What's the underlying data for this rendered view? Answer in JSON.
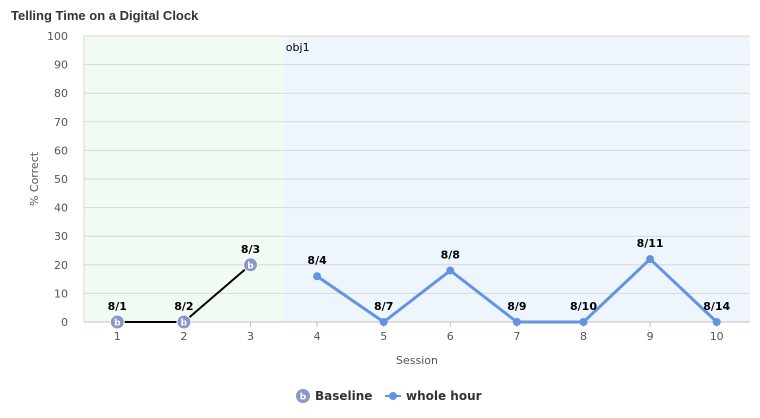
{
  "chart_data": {
    "type": "line",
    "title": "Telling Time on a Digital Clock",
    "xlabel": "Session",
    "ylabel": "% Correct",
    "ylim": [
      0,
      100
    ],
    "yticks": [
      0,
      10,
      20,
      30,
      40,
      50,
      60,
      70,
      80,
      90,
      100
    ],
    "xlim": [
      0.5,
      10.5
    ],
    "xticks": [
      1,
      2,
      3,
      4,
      5,
      6,
      7,
      8,
      9,
      10
    ],
    "grid": true,
    "legend_position": "bottom",
    "phases": [
      {
        "label": "",
        "start": 0.5,
        "end": 3.5,
        "color": "#f2fbf2"
      },
      {
        "label": "obj1",
        "start": 3.5,
        "end": 10.5,
        "color": "#eef5fd"
      }
    ],
    "series": [
      {
        "name": "Baseline",
        "color": "#000000",
        "marker": "b",
        "marker_color": "#8898c8",
        "points": [
          {
            "x": 1,
            "y": 0,
            "label": "8/1"
          },
          {
            "x": 2,
            "y": 0,
            "label": "8/2"
          },
          {
            "x": 3,
            "y": 20,
            "label": "8/3"
          }
        ]
      },
      {
        "name": "whole hour",
        "color": "#6394e2",
        "marker": "circle",
        "marker_color": "#6394e2",
        "points": [
          {
            "x": 4,
            "y": 16,
            "label": "8/4"
          },
          {
            "x": 5,
            "y": 0,
            "label": "8/7"
          },
          {
            "x": 6,
            "y": 18,
            "label": "8/8"
          },
          {
            "x": 7,
            "y": 0,
            "label": "8/9"
          },
          {
            "x": 8,
            "y": 0,
            "label": "8/10"
          },
          {
            "x": 9,
            "y": 22,
            "label": "8/11"
          },
          {
            "x": 10,
            "y": 0,
            "label": "8/14"
          }
        ]
      }
    ]
  }
}
